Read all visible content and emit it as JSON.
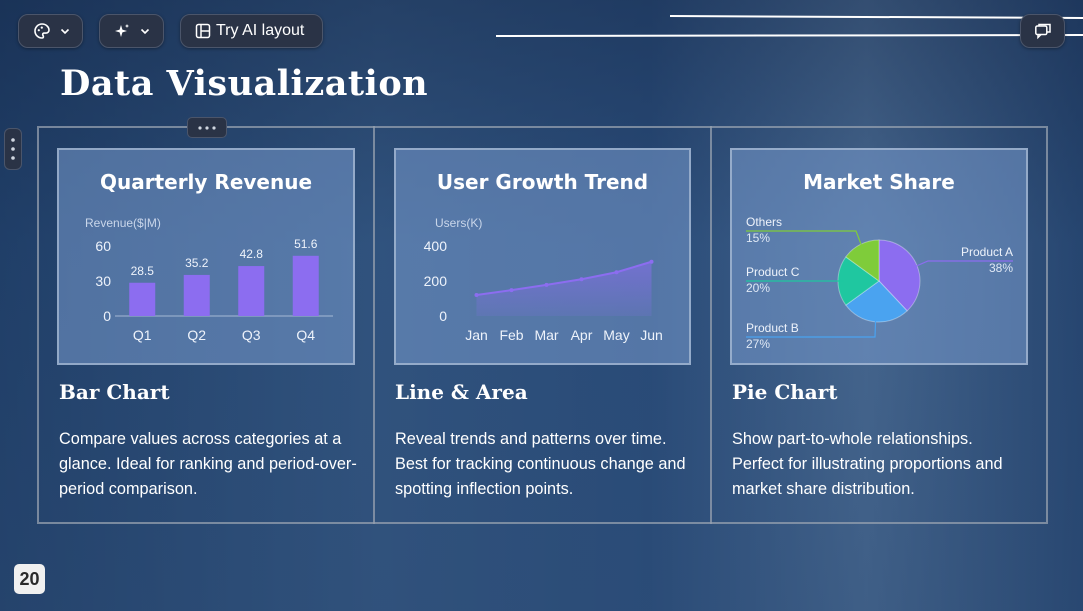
{
  "toolbar": {
    "theme_icon": "palette-icon",
    "ai_icon": "sparkle-icon",
    "layout_label": "Try AI layout",
    "layout_icon": "layout-icon",
    "comment_icon": "comment-icon"
  },
  "slide": {
    "title": "Data Visualization",
    "page_number": "20"
  },
  "columns": [
    {
      "heading": "Bar Chart",
      "description": "Compare values across categories at a glance. Ideal for ranking and period-over-period comparison."
    },
    {
      "heading": "Line & Area",
      "description": "Reveal trends and patterns over time. Best for tracking continuous change and spotting inflection points."
    },
    {
      "heading": "Pie Chart",
      "description": "Show part-to-whole relationships. Perfect for illustrating proportions and market share distribution."
    }
  ],
  "colors": {
    "bar": "#8c6df0",
    "line": "#8c6df0",
    "pie_a": "#8c6df0",
    "pie_b": "#4aa3f0",
    "pie_c": "#1fc7a0",
    "pie_others": "#7fcc3a"
  },
  "chart_data": [
    {
      "type": "bar",
      "title": "Quarterly Revenue",
      "ylabel": "Revenue($|M)",
      "categories": [
        "Q1",
        "Q2",
        "Q3",
        "Q4"
      ],
      "values": [
        28.5,
        35.2,
        42.8,
        51.6
      ],
      "data_labels": [
        "28.5",
        "35.2",
        "42.8",
        "51.6"
      ],
      "yticks": [
        "0",
        "30",
        "60"
      ],
      "ylim": [
        0,
        60
      ],
      "grid": false
    },
    {
      "type": "area",
      "title": "User Growth Trend",
      "ylabel": "Users(K)",
      "categories": [
        "Jan",
        "Feb",
        "Mar",
        "Apr",
        "May",
        "Jun"
      ],
      "values": [
        120,
        148,
        178,
        210,
        250,
        310
      ],
      "yticks": [
        "0",
        "200",
        "400"
      ],
      "ylim": [
        0,
        400
      ],
      "grid": false
    },
    {
      "type": "pie",
      "title": "Market Share",
      "slices": [
        {
          "name": "Product A",
          "label": "38%",
          "value": 38
        },
        {
          "name": "Product B",
          "label": "27%",
          "value": 27
        },
        {
          "name": "Product C",
          "label": "20%",
          "value": 20
        },
        {
          "name": "Others",
          "label": "15%",
          "value": 15
        }
      ]
    }
  ]
}
